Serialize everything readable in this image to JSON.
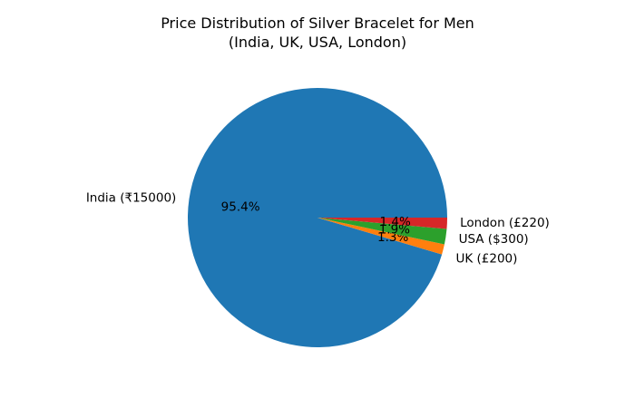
{
  "chart_data": {
    "type": "pie",
    "title": "Price Distribution of Silver Bracelet for Men",
    "subtitle": "(India, UK, USA, London)",
    "categories": [
      "India (₹15000)",
      "UK (£200)",
      "USA ($300)",
      "London (£220)"
    ],
    "values": [
      15000,
      200,
      300,
      220
    ],
    "percent_labels": [
      "95.4%",
      "1.3%",
      "1.9%",
      "1.4%"
    ],
    "colors": [
      "#1f77b4",
      "#ff7f0e",
      "#2ca02c",
      "#d62728"
    ],
    "start_angle": 0,
    "direction": "counterclockwise",
    "legend": "none"
  },
  "title": {
    "line1": "Price Distribution of Silver Bracelet for Men",
    "line2": "(India, UK, USA, London)"
  }
}
